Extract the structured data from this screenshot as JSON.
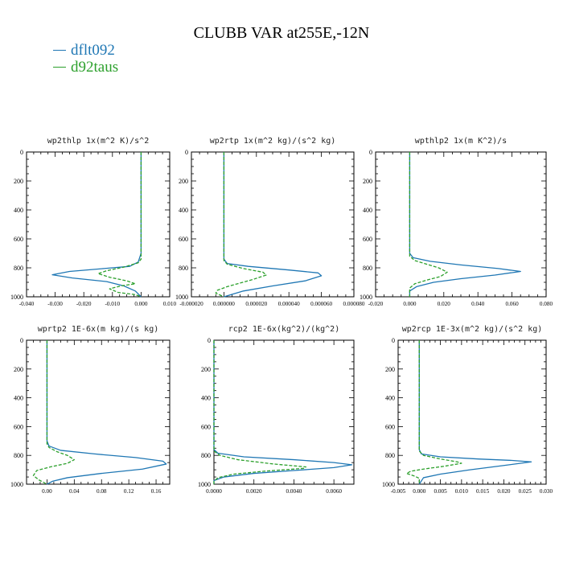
{
  "title": "CLUBB VAR at255E,-12N",
  "colors": {
    "dflt": "#1f77b4",
    "d92": "#2ca02c"
  },
  "legend": [
    {
      "label": "dflt092",
      "color": "#1f77b4",
      "dash": "solid"
    },
    {
      "label": "d92taus",
      "color": "#2ca02c",
      "dash": "dash"
    }
  ],
  "chart_data": [
    {
      "type": "line",
      "title": "wp2thlp   1x(m^2 K)/s^2",
      "xlim": [
        -0.04,
        0.01
      ],
      "xticks": [
        -0.04,
        -0.03,
        -0.02,
        -0.01,
        0.0,
        0.01
      ],
      "xtick_labels": [
        "-0.040",
        "-0.030",
        "-0.020",
        "-0.010",
        "0.000",
        "0.010"
      ],
      "ylim": [
        0,
        1000
      ],
      "yticks": [
        0,
        200,
        400,
        600,
        800,
        1000
      ],
      "ytick_labels": [
        "0",
        "200",
        "400",
        "600",
        "800",
        "1000"
      ],
      "y_inverted": true,
      "series": [
        {
          "name": "dflt092",
          "points": [
            [
              0.0,
              0
            ],
            [
              0.0,
              700
            ],
            [
              -0.001,
              760
            ],
            [
              -0.004,
              790
            ],
            [
              -0.013,
              805
            ],
            [
              -0.025,
              825
            ],
            [
              -0.031,
              848
            ],
            [
              -0.024,
              870
            ],
            [
              -0.012,
              895
            ],
            [
              -0.006,
              925
            ],
            [
              -0.002,
              960
            ],
            [
              0.0,
              1000
            ]
          ]
        },
        {
          "name": "d92taus",
          "points": [
            [
              0.0,
              0
            ],
            [
              0.0,
              740
            ],
            [
              -0.001,
              765
            ],
            [
              -0.006,
              795
            ],
            [
              -0.012,
              820
            ],
            [
              -0.015,
              840
            ],
            [
              -0.011,
              865
            ],
            [
              -0.005,
              890
            ],
            [
              -0.002,
              910
            ],
            [
              -0.007,
              925
            ],
            [
              -0.011,
              945
            ],
            [
              -0.008,
              970
            ],
            [
              -0.002,
              985
            ],
            [
              0.0,
              1000
            ]
          ]
        }
      ]
    },
    {
      "type": "line",
      "title": "wp2rtp   1x(m^2 kg)/(s^2 kg)",
      "xlim": [
        -2e-05,
        8e-05
      ],
      "xticks": [
        -2e-05,
        0.0,
        2e-05,
        4e-05,
        6e-05,
        8e-05
      ],
      "xtick_labels": [
        "-0.000020",
        "0.000000",
        "0.000020",
        "0.000040",
        "0.000060",
        "0.000080"
      ],
      "ylim": [
        0,
        1000
      ],
      "yticks": [
        0,
        200,
        400,
        600,
        800,
        1000
      ],
      "ytick_labels": [
        "0",
        "200",
        "400",
        "600",
        "800",
        "1000"
      ],
      "y_inverted": true,
      "series": [
        {
          "name": "dflt092",
          "points": [
            [
              0.0,
              0
            ],
            [
              0.0,
              740
            ],
            [
              2e-06,
              770
            ],
            [
              1.5e-05,
              790
            ],
            [
              4e-05,
              815
            ],
            [
              5.8e-05,
              835
            ],
            [
              6e-05,
              855
            ],
            [
              5e-05,
              890
            ],
            [
              3e-05,
              925
            ],
            [
              1.2e-05,
              960
            ],
            [
              0.0,
              1000
            ]
          ]
        },
        {
          "name": "d92taus",
          "points": [
            [
              0.0,
              0
            ],
            [
              0.0,
              750
            ],
            [
              2e-06,
              775
            ],
            [
              1.2e-05,
              805
            ],
            [
              2.4e-05,
              830
            ],
            [
              2.6e-05,
              850
            ],
            [
              1.8e-05,
              880
            ],
            [
              1e-05,
              905
            ],
            [
              2e-06,
              930
            ],
            [
              -4e-06,
              955
            ],
            [
              -5e-06,
              975
            ],
            [
              0.0,
              1000
            ]
          ]
        }
      ]
    },
    {
      "type": "line",
      "title": "wpthlp2   1x(m K^2)/s",
      "xlim": [
        -0.02,
        0.08
      ],
      "xticks": [
        -0.02,
        0.0,
        0.02,
        0.04,
        0.06,
        0.08
      ],
      "xtick_labels": [
        "-0.020",
        "0.000",
        "0.020",
        "0.040",
        "0.060",
        "0.080"
      ],
      "ylim": [
        0,
        1000
      ],
      "yticks": [
        0,
        200,
        400,
        600,
        800,
        1000
      ],
      "ytick_labels": [
        "0",
        "200",
        "400",
        "600",
        "800",
        "1000"
      ],
      "y_inverted": true,
      "series": [
        {
          "name": "dflt092",
          "points": [
            [
              0.0,
              0
            ],
            [
              0.0,
              700
            ],
            [
              0.002,
              730
            ],
            [
              0.012,
              755
            ],
            [
              0.03,
              780
            ],
            [
              0.052,
              805
            ],
            [
              0.065,
              825
            ],
            [
              0.05,
              850
            ],
            [
              0.03,
              875
            ],
            [
              0.014,
              900
            ],
            [
              0.004,
              930
            ],
            [
              0.0,
              960
            ],
            [
              0.0,
              1000
            ]
          ]
        },
        {
          "name": "d92taus",
          "points": [
            [
              0.0,
              0
            ],
            [
              0.0,
              720
            ],
            [
              0.003,
              750
            ],
            [
              0.01,
              775
            ],
            [
              0.017,
              800
            ],
            [
              0.022,
              830
            ],
            [
              0.018,
              860
            ],
            [
              0.01,
              885
            ],
            [
              0.003,
              910
            ],
            [
              0.0,
              940
            ],
            [
              0.0,
              1000
            ]
          ]
        }
      ]
    },
    {
      "type": "line",
      "title": "wprtp2   1E-6x(m kg)/(s kg)",
      "xlim": [
        -0.03,
        0.18
      ],
      "xticks": [
        0.0,
        0.04,
        0.08,
        0.12,
        0.16
      ],
      "xtick_labels": [
        "0.00",
        "0.04",
        "0.08",
        "0.12",
        "0.16"
      ],
      "ylim": [
        0,
        1000
      ],
      "yticks": [
        0,
        200,
        400,
        600,
        800,
        1000
      ],
      "ytick_labels": [
        "0",
        "200",
        "400",
        "600",
        "800",
        "1000"
      ],
      "y_inverted": true,
      "series": [
        {
          "name": "dflt092",
          "points": [
            [
              0.0,
              0
            ],
            [
              0.0,
              700
            ],
            [
              0.003,
              735
            ],
            [
              0.02,
              765
            ],
            [
              0.07,
              790
            ],
            [
              0.13,
              815
            ],
            [
              0.17,
              840
            ],
            [
              0.175,
              860
            ],
            [
              0.14,
              895
            ],
            [
              0.08,
              925
            ],
            [
              0.03,
              955
            ],
            [
              0.008,
              980
            ],
            [
              0.0,
              1000
            ]
          ]
        },
        {
          "name": "d92taus",
          "points": [
            [
              0.0,
              0
            ],
            [
              0.0,
              720
            ],
            [
              0.003,
              745
            ],
            [
              0.015,
              775
            ],
            [
              0.03,
              800
            ],
            [
              0.04,
              830
            ],
            [
              0.03,
              855
            ],
            [
              0.005,
              880
            ],
            [
              -0.015,
              905
            ],
            [
              -0.02,
              940
            ],
            [
              -0.012,
              970
            ],
            [
              0.0,
              1000
            ]
          ]
        }
      ]
    },
    {
      "type": "line",
      "title": "rcp2   1E-6x(kg^2)/(kg^2)",
      "xlim": [
        0.0,
        0.007
      ],
      "xticks": [
        0.0,
        0.002,
        0.004,
        0.006
      ],
      "xtick_labels": [
        "0.0000",
        "0.0020",
        "0.0040",
        "0.0060"
      ],
      "ylim": [
        0,
        1000
      ],
      "yticks": [
        0,
        200,
        400,
        600,
        800,
        1000
      ],
      "ytick_labels": [
        "0",
        "200",
        "400",
        "600",
        "800",
        "1000"
      ],
      "y_inverted": true,
      "series": [
        {
          "name": "dflt092",
          "points": [
            [
              0.0,
              0
            ],
            [
              0.0,
              760
            ],
            [
              0.0002,
              785
            ],
            [
              0.0015,
              810
            ],
            [
              0.004,
              830
            ],
            [
              0.006,
              850
            ],
            [
              0.0069,
              865
            ],
            [
              0.006,
              885
            ],
            [
              0.004,
              905
            ],
            [
              0.002,
              925
            ],
            [
              0.0005,
              950
            ],
            [
              0.0,
              975
            ],
            [
              0.0,
              1000
            ]
          ]
        },
        {
          "name": "d92taus",
          "points": [
            [
              0.0,
              0
            ],
            [
              0.0,
              770
            ],
            [
              0.0003,
              800
            ],
            [
              0.0012,
              830
            ],
            [
              0.003,
              860
            ],
            [
              0.0046,
              880
            ],
            [
              0.0045,
              890
            ],
            [
              0.0025,
              910
            ],
            [
              0.001,
              930
            ],
            [
              0.0002,
              955
            ],
            [
              0.0,
              980
            ],
            [
              0.0,
              1000
            ]
          ]
        }
      ]
    },
    {
      "type": "line",
      "title": "wp2rcp   1E-3x(m^2 kg)/(s^2 kg)",
      "xlim": [
        -0.005,
        0.03
      ],
      "xticks": [
        -0.005,
        0.0,
        0.005,
        0.01,
        0.015,
        0.02,
        0.025,
        0.03
      ],
      "xtick_labels": [
        "-0.005",
        "0.000",
        "0.005",
        "0.010",
        "0.015",
        "0.020",
        "0.025",
        "0.030"
      ],
      "ylim": [
        0,
        1000
      ],
      "yticks": [
        0,
        200,
        400,
        600,
        800,
        1000
      ],
      "ytick_labels": [
        "0",
        "200",
        "400",
        "600",
        "800",
        "1000"
      ],
      "y_inverted": true,
      "series": [
        {
          "name": "dflt092",
          "points": [
            [
              0.0,
              0
            ],
            [
              0.0,
              760
            ],
            [
              0.0005,
              790
            ],
            [
              0.005,
              810
            ],
            [
              0.014,
              825
            ],
            [
              0.022,
              835
            ],
            [
              0.0265,
              845
            ],
            [
              0.02,
              870
            ],
            [
              0.012,
              900
            ],
            [
              0.005,
              930
            ],
            [
              0.001,
              955
            ],
            [
              0.0,
              1000
            ]
          ]
        },
        {
          "name": "d92taus",
          "points": [
            [
              0.0,
              0
            ],
            [
              0.0,
              770
            ],
            [
              0.001,
              800
            ],
            [
              0.005,
              825
            ],
            [
              0.009,
              845
            ],
            [
              0.01,
              855
            ],
            [
              0.006,
              875
            ],
            [
              0.001,
              895
            ],
            [
              -0.002,
              910
            ],
            [
              -0.003,
              925
            ],
            [
              -0.001,
              945
            ],
            [
              0.0,
              960
            ],
            [
              0.0,
              1000
            ]
          ]
        }
      ]
    }
  ]
}
